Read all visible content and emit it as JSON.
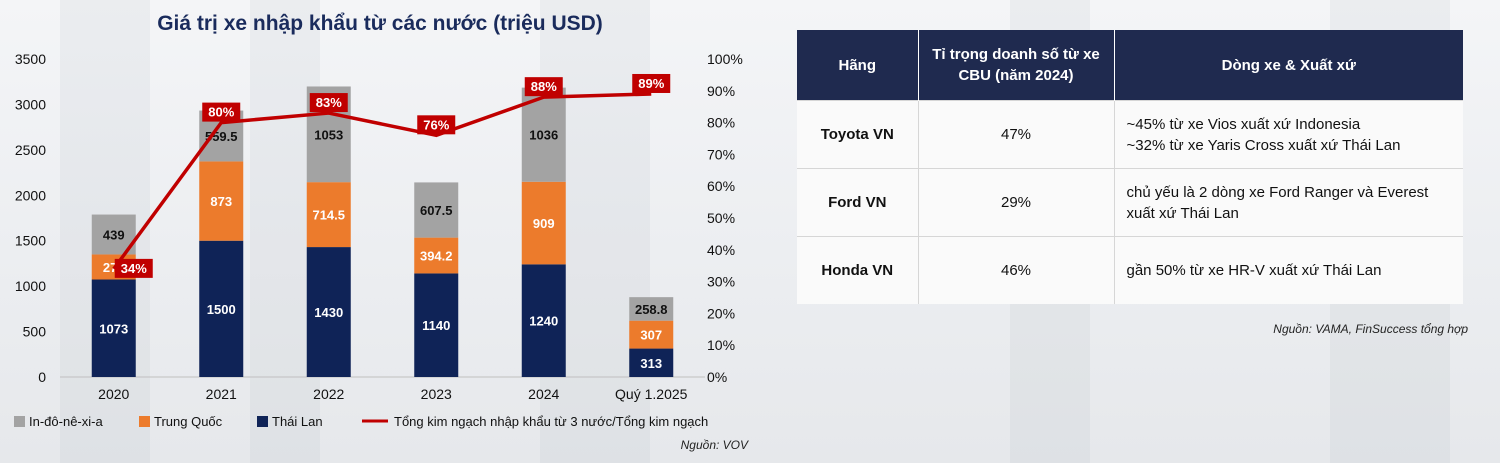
{
  "chart_data": {
    "type": "bar",
    "stacked": true,
    "title": "Giá trị xe nhập khẩu từ các nước (triệu USD)",
    "categories": [
      "2020",
      "2021",
      "2022",
      "2023",
      "2024",
      "Quý 1.2025"
    ],
    "series": [
      {
        "name": "Thái Lan",
        "color": "#0f2357",
        "values": [
          1073,
          1500,
          1430,
          1140,
          1240,
          313
        ],
        "labels": [
          "1073",
          "1500",
          "1430",
          "1140",
          "1240",
          "313"
        ]
      },
      {
        "name": "Trung Quốc",
        "color": "#ec7b2c",
        "values": [
          276,
          873,
          714.5,
          394.2,
          909,
          307
        ],
        "labels": [
          "276",
          "873",
          "714.5",
          "394.2",
          "909",
          "307"
        ]
      },
      {
        "name": "In-đô-nê-xi-a",
        "color": "#a3a3a3",
        "values": [
          439,
          559.5,
          1053,
          607.5,
          1036,
          258.8
        ],
        "labels": [
          "439",
          "559.5",
          "1053",
          "607.5",
          "1036",
          "258.8"
        ]
      }
    ],
    "line_series": {
      "name": "Tổng kim ngạch nhập khẩu từ 3 nước/Tổng kim ngạch",
      "color": "#c00000",
      "axis": "right",
      "values": [
        34,
        80,
        83,
        76,
        88,
        89
      ],
      "labels": [
        "34%",
        "80%",
        "83%",
        "76%",
        "88%",
        "89%"
      ]
    },
    "y_left": {
      "min": 0,
      "max": 3500,
      "ticks": [
        "0",
        "500",
        "1000",
        "1500",
        "2000",
        "2500",
        "3000",
        "3500"
      ]
    },
    "y_right": {
      "min": 0,
      "max": 100,
      "ticks": [
        "0%",
        "10%",
        "20%",
        "30%",
        "40%",
        "50%",
        "60%",
        "70%",
        "80%",
        "90%",
        "100%"
      ]
    },
    "grid": false,
    "legend_position": "bottom",
    "legend": [
      {
        "label": "In-đô-nê-xi-a",
        "kind": "square",
        "color": "#a3a3a3"
      },
      {
        "label": "Trung Quốc",
        "kind": "square",
        "color": "#ec7b2c"
      },
      {
        "label": "Thái Lan",
        "kind": "square",
        "color": "#0f2357"
      },
      {
        "label": "Tổng kim ngạch nhập khẩu từ 3 nước/Tổng kim ngạch",
        "kind": "line",
        "color": "#c00000"
      }
    ],
    "source": "Nguồn: VOV"
  },
  "table": {
    "headers": [
      "Hãng",
      "Tỉ trọng doanh số từ xe CBU (năm 2024)",
      "Dòng xe & Xuất xứ"
    ],
    "rows": [
      {
        "brand": "Toyota VN",
        "share": "47%",
        "desc": [
          "~45% từ xe Vios xuất xứ Indonesia",
          "~32% từ xe Yaris Cross xuất xứ Thái Lan"
        ]
      },
      {
        "brand": "Ford VN",
        "share": "29%",
        "desc": [
          "chủ yếu là 2 dòng xe Ford Ranger và Everest",
          "xuất xứ Thái Lan"
        ]
      },
      {
        "brand": "Honda VN",
        "share": "46%",
        "desc": [
          "gần 50% từ xe HR-V xuất xứ Thái Lan"
        ]
      }
    ],
    "source": "Nguồn: VAMA, FinSuccess tổng hợp"
  }
}
